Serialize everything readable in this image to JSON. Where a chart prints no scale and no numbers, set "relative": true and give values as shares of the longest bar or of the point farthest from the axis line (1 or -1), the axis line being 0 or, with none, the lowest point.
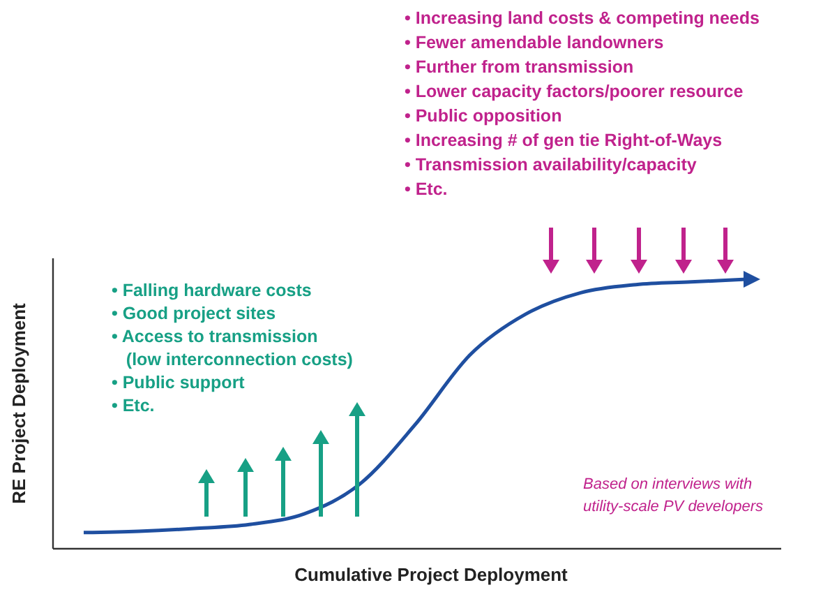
{
  "chart_data": {
    "type": "line",
    "relative": true,
    "xlabel": "Cumulative Project Deployment",
    "ylabel": "RE Project Deployment",
    "categories": [
      null,
      null,
      null,
      null,
      null,
      null,
      null,
      null,
      null,
      null,
      null,
      null,
      null
    ],
    "series": [
      {
        "color": "#1f4fa0",
        "values": [
          0.06,
          0.065,
          0.075,
          0.09,
          0.13,
          0.24,
          0.46,
          0.72,
          0.87,
          0.95,
          0.98,
          0.99,
          1.0
        ]
      }
    ],
    "marker": "none",
    "line_style": "solid",
    "annotations": [
      "• Falling hardware costs\n• Good project sites\n• Access to transmission\n   (low interconnection costs)\n• Public support\n• Etc.",
      "• Increasing land costs & competing needs\n• Fewer amendable landowners\n• Further from transmission\n• Lower capacity factors/poorer resource\n• Public opposition\n• Increasing # of gen tie Right-of-Ways\n• Transmission availability/capacity\n• Etc.",
      "Based on interviews with\nutility-scale PV developers"
    ]
  }
}
